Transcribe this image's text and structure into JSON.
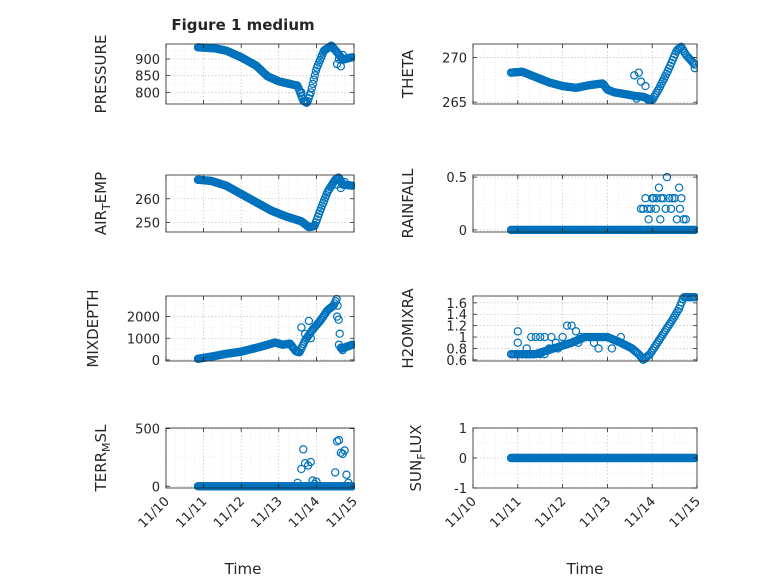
{
  "figure": {
    "title": "Figure 1 medium",
    "xlabel": "Time",
    "x_tick_labels": [
      "11/10",
      "11/11",
      "11/12",
      "11/13",
      "11/14",
      "11/15"
    ],
    "x_range_days": [
      10,
      15
    ],
    "marker_color": "#0072BD"
  },
  "chart_data": [
    {
      "type": "scatter",
      "ylabel_main": "PRESSURE",
      "ylabel_sub": "",
      "ylim": [
        765,
        945
      ],
      "yticks": [
        800,
        850,
        900
      ],
      "ytick_labels": [
        "800",
        "850",
        "900"
      ],
      "x_start": 10.85,
      "x_end": 14.95,
      "n": 150,
      "trend": [
        [
          10.85,
          935
        ],
        [
          11.3,
          932
        ],
        [
          11.6,
          925
        ],
        [
          12.0,
          905
        ],
        [
          12.4,
          880
        ],
        [
          12.7,
          848
        ],
        [
          13.0,
          833
        ],
        [
          13.3,
          825
        ],
        [
          13.5,
          820
        ],
        [
          13.65,
          775
        ],
        [
          13.75,
          768
        ],
        [
          13.85,
          800
        ],
        [
          14.0,
          870
        ],
        [
          14.2,
          925
        ],
        [
          14.4,
          940
        ],
        [
          14.55,
          920
        ],
        [
          14.7,
          898
        ],
        [
          14.95,
          905
        ]
      ],
      "extra": [
        [
          13.6,
          800
        ],
        [
          14.55,
          885
        ],
        [
          14.6,
          900
        ],
        [
          14.65,
          878
        ],
        [
          14.7,
          912
        ]
      ]
    },
    {
      "type": "scatter",
      "ylabel_main": "THETA",
      "ylabel_sub": "",
      "ylim": [
        264.8,
        271.5
      ],
      "yticks": [
        265,
        270
      ],
      "ytick_labels": [
        "265",
        "270"
      ],
      "x_start": 10.85,
      "x_end": 14.95,
      "n": 150,
      "trend": [
        [
          10.85,
          268.3
        ],
        [
          11.1,
          268.4
        ],
        [
          11.4,
          267.8
        ],
        [
          11.7,
          267.2
        ],
        [
          12.0,
          266.8
        ],
        [
          12.3,
          266.6
        ],
        [
          12.6,
          266.9
        ],
        [
          12.9,
          267.1
        ],
        [
          13.0,
          266.4
        ],
        [
          13.15,
          266.1
        ],
        [
          13.4,
          265.9
        ],
        [
          13.6,
          265.7
        ],
        [
          13.8,
          265.6
        ],
        [
          14.0,
          265.2
        ],
        [
          14.15,
          266.5
        ],
        [
          14.35,
          268.5
        ],
        [
          14.55,
          270.8
        ],
        [
          14.65,
          271.2
        ],
        [
          14.75,
          270.3
        ],
        [
          14.95,
          269.2
        ]
      ],
      "extra": [
        [
          13.6,
          268.0
        ],
        [
          13.7,
          268.3
        ],
        [
          13.75,
          267.3
        ],
        [
          13.85,
          266.8
        ],
        [
          13.65,
          265.4
        ],
        [
          13.9,
          265.3
        ],
        [
          14.95,
          268.8
        ]
      ]
    },
    {
      "type": "scatter",
      "ylabel_main": "AIR",
      "ylabel_sub": "T",
      "ylabel_tail": "EMP",
      "ylim": [
        246,
        270
      ],
      "yticks": [
        250,
        260
      ],
      "ytick_labels": [
        "250",
        "260"
      ],
      "x_start": 10.85,
      "x_end": 14.95,
      "n": 150,
      "trend": [
        [
          10.85,
          268.0
        ],
        [
          11.2,
          267.5
        ],
        [
          11.6,
          265.5
        ],
        [
          12.0,
          262.0
        ],
        [
          12.4,
          258.5
        ],
        [
          12.8,
          255.0
        ],
        [
          13.2,
          252.5
        ],
        [
          13.6,
          250.5
        ],
        [
          13.8,
          248.0
        ],
        [
          13.95,
          248.5
        ],
        [
          14.1,
          255.0
        ],
        [
          14.3,
          263.0
        ],
        [
          14.5,
          268.0
        ],
        [
          14.6,
          269.0
        ],
        [
          14.7,
          266.0
        ],
        [
          14.95,
          265.5
        ]
      ],
      "extra": [
        [
          14.55,
          266.0
        ],
        [
          14.65,
          264.5
        ],
        [
          14.75,
          267.0
        ]
      ]
    },
    {
      "type": "scatter",
      "ylabel_main": "RAINFALL",
      "ylabel_sub": "",
      "ylim": [
        -0.02,
        0.52
      ],
      "yticks": [
        0,
        0.5
      ],
      "ytick_labels": [
        "0",
        "0.5"
      ],
      "x_start": 10.85,
      "x_end": 14.95,
      "n": 170,
      "trend": [
        [
          10.85,
          0
        ],
        [
          14.95,
          0
        ]
      ],
      "extra": [
        [
          13.75,
          0.2
        ],
        [
          13.8,
          0.2
        ],
        [
          13.85,
          0.3
        ],
        [
          13.9,
          0.2
        ],
        [
          13.92,
          0.1
        ],
        [
          13.97,
          0.2
        ],
        [
          14.0,
          0.3
        ],
        [
          14.03,
          0.3
        ],
        [
          14.08,
          0.2
        ],
        [
          14.1,
          0.3
        ],
        [
          14.15,
          0.4
        ],
        [
          14.18,
          0.1
        ],
        [
          14.2,
          0.3
        ],
        [
          14.25,
          0.3
        ],
        [
          14.3,
          0.2
        ],
        [
          14.33,
          0.5
        ],
        [
          14.38,
          0.3
        ],
        [
          14.42,
          0.2
        ],
        [
          14.45,
          0.3
        ],
        [
          14.5,
          0.3
        ],
        [
          14.55,
          0.1
        ],
        [
          14.6,
          0.4
        ],
        [
          14.62,
          0.2
        ],
        [
          14.65,
          0.3
        ],
        [
          14.7,
          0.1
        ],
        [
          14.75,
          0.1
        ],
        [
          13.9,
          0.0
        ],
        [
          13.95,
          0.0
        ]
      ]
    },
    {
      "type": "scatter",
      "ylabel_main": "MIXDEPTH",
      "ylabel_sub": "",
      "ylim": [
        -50,
        2950
      ],
      "yticks": [
        0,
        1000,
        2000
      ],
      "ytick_labels": [
        "0",
        "1000",
        "2000"
      ],
      "x_start": 10.85,
      "x_end": 14.95,
      "n": 150,
      "trend": [
        [
          10.85,
          50
        ],
        [
          11.2,
          150
        ],
        [
          11.6,
          280
        ],
        [
          12.0,
          380
        ],
        [
          12.5,
          600
        ],
        [
          12.9,
          800
        ],
        [
          13.1,
          700
        ],
        [
          13.3,
          750
        ],
        [
          13.45,
          400
        ],
        [
          13.55,
          350
        ],
        [
          13.7,
          900
        ],
        [
          13.9,
          1400
        ],
        [
          14.1,
          1800
        ],
        [
          14.3,
          2300
        ],
        [
          14.45,
          2500
        ],
        [
          14.55,
          2850
        ],
        [
          14.65,
          500
        ],
        [
          14.8,
          600
        ],
        [
          14.95,
          700
        ]
      ],
      "extra": [
        [
          13.6,
          1500
        ],
        [
          13.7,
          1200
        ],
        [
          13.8,
          1800
        ],
        [
          13.85,
          1000
        ],
        [
          14.55,
          2000
        ],
        [
          14.6,
          700
        ],
        [
          14.7,
          450
        ]
      ]
    },
    {
      "type": "scatter",
      "ylabel_main": "H2OMIXRA",
      "ylabel_sub": "",
      "ylim": [
        0.58,
        1.72
      ],
      "yticks": [
        0.6,
        0.8,
        1.0,
        1.2,
        1.4,
        1.6
      ],
      "ytick_labels": [
        "0.6",
        "0.8",
        "1",
        "1.2",
        "1.4",
        "1.6"
      ],
      "x_start": 10.85,
      "x_end": 14.95,
      "n": 140,
      "trend": [
        [
          10.85,
          0.7
        ],
        [
          11.4,
          0.7
        ],
        [
          11.8,
          0.8
        ],
        [
          12.2,
          0.9
        ],
        [
          12.5,
          1.0
        ],
        [
          13.0,
          1.0
        ],
        [
          13.3,
          0.9
        ],
        [
          13.55,
          0.8
        ],
        [
          13.7,
          0.7
        ],
        [
          13.8,
          0.6
        ],
        [
          13.95,
          0.7
        ],
        [
          14.2,
          1.0
        ],
        [
          14.45,
          1.3
        ],
        [
          14.6,
          1.5
        ],
        [
          14.7,
          1.7
        ],
        [
          14.95,
          1.7
        ]
      ],
      "extra": [
        [
          11.0,
          1.1
        ],
        [
          11.0,
          0.9
        ],
        [
          11.2,
          0.8
        ],
        [
          11.3,
          1.0
        ],
        [
          11.4,
          1.0
        ],
        [
          11.5,
          1.0
        ],
        [
          11.6,
          1.0
        ],
        [
          11.7,
          0.8
        ],
        [
          11.75,
          1.0
        ],
        [
          11.85,
          0.9
        ],
        [
          12.0,
          1.0
        ],
        [
          12.1,
          1.2
        ],
        [
          12.2,
          1.2
        ],
        [
          12.3,
          1.1
        ],
        [
          12.35,
          0.9
        ],
        [
          12.4,
          1.0
        ],
        [
          12.6,
          1.0
        ],
        [
          12.7,
          0.9
        ],
        [
          12.8,
          0.8
        ],
        [
          12.9,
          1.0
        ],
        [
          13.1,
          0.8
        ],
        [
          13.3,
          1.0
        ],
        [
          11.2,
          0.7
        ],
        [
          11.5,
          0.7
        ],
        [
          11.6,
          0.7
        ],
        [
          11.9,
          0.8
        ]
      ]
    },
    {
      "type": "scatter",
      "ylabel_main": "TERR",
      "ylabel_sub": "M",
      "ylabel_tail": "SL",
      "ylim": [
        -15,
        505
      ],
      "yticks": [
        0,
        500
      ],
      "ytick_labels": [
        "0",
        "500"
      ],
      "x_start": 10.85,
      "x_end": 14.95,
      "n": 160,
      "trend": [
        [
          10.85,
          0
        ],
        [
          14.95,
          0
        ]
      ],
      "extra": [
        [
          13.5,
          30
        ],
        [
          13.6,
          150
        ],
        [
          13.65,
          320
        ],
        [
          13.7,
          200
        ],
        [
          13.78,
          180
        ],
        [
          13.85,
          210
        ],
        [
          13.9,
          50
        ],
        [
          13.95,
          20
        ],
        [
          14.0,
          40
        ],
        [
          14.5,
          120
        ],
        [
          14.55,
          390
        ],
        [
          14.6,
          400
        ],
        [
          14.65,
          290
        ],
        [
          14.7,
          280
        ],
        [
          14.75,
          310
        ],
        [
          14.8,
          100
        ],
        [
          14.85,
          30
        ]
      ]
    },
    {
      "type": "scatter",
      "ylabel_main": "SUN",
      "ylabel_sub": "F",
      "ylabel_tail": "LUX",
      "ylim": [
        -1,
        1
      ],
      "yticks": [
        -1,
        0,
        1
      ],
      "ytick_labels": [
        "-1",
        "0",
        "1"
      ],
      "x_start": 10.85,
      "x_end": 14.95,
      "n": 170,
      "trend": [
        [
          10.85,
          0
        ],
        [
          14.95,
          0
        ]
      ],
      "extra": []
    }
  ]
}
